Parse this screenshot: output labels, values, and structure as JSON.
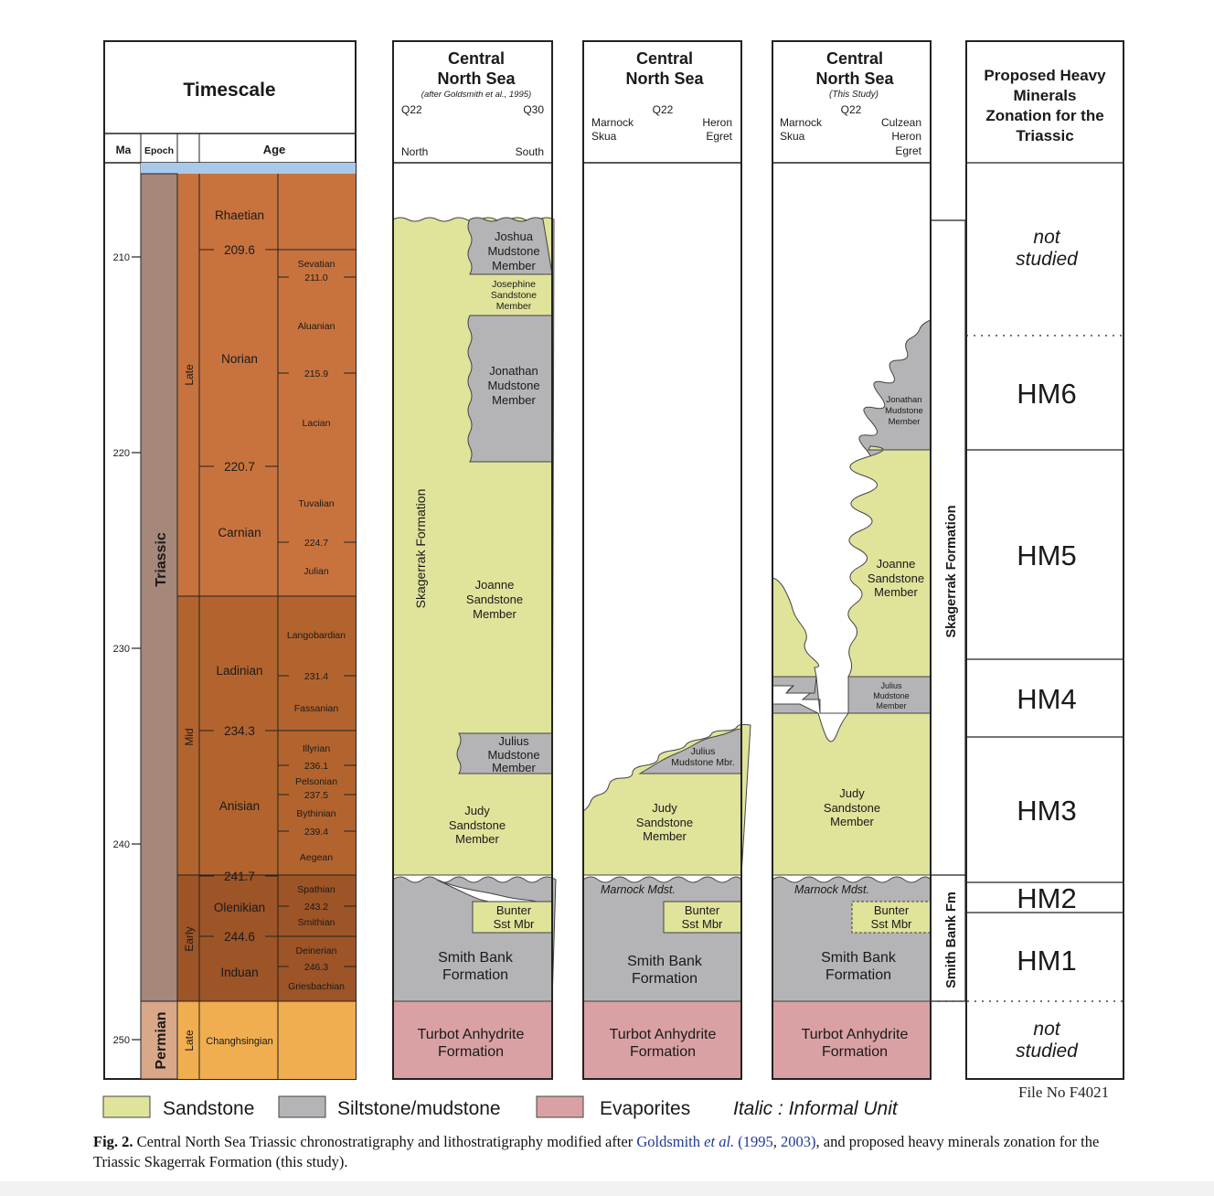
{
  "colors": {
    "sandstone": "#e0e39a",
    "mudstone": "#b4b4b6",
    "evaporite": "#d9a1a3",
    "late_triassic": "#c8733e",
    "mid_triassic": "#b3642e",
    "early_triassic": "#9d5427",
    "permian_age": "#f0ae50",
    "triassic_epoch": "#a5887a",
    "permian_epoch": "#d9a889",
    "sky": "#a9c9ec"
  },
  "timescale": {
    "title": "Timescale",
    "headers": {
      "ma": "Ma",
      "epoch": "Epoch",
      "age": "Age"
    },
    "ma_ticks": [
      "210",
      "220",
      "230",
      "240",
      "250"
    ],
    "periods": {
      "triassic": "Triassic",
      "permian": "Permian"
    },
    "epochs": {
      "late": "Late",
      "mid": "Mid",
      "early": "Early",
      "permian_late": "Late"
    },
    "stages": [
      "Rhaetian",
      "Norian",
      "Carnian",
      "Ladinian",
      "Anisian",
      "Olenikian",
      "Induan",
      "Changhsingian"
    ],
    "boundary_ages": [
      "209.6",
      "220.7",
      "234.3",
      "241.7",
      "244.6"
    ],
    "substages": [
      "Sevatian",
      "Aluanian",
      "Lacian",
      "Tuvalian",
      "Julian",
      "Langobardian",
      "Fassanian",
      "Illyrian",
      "Pelsonian",
      "Bythinian",
      "Aegean",
      "Spathian",
      "Smithian",
      "Deinerian",
      "Griesbachian"
    ],
    "substage_ages": [
      "211.0",
      "215.9",
      "224.7",
      "231.4",
      "236.1",
      "237.5",
      "239.4",
      "243.2",
      "246.3"
    ]
  },
  "col1": {
    "title_1": "Central",
    "title_2": "North Sea",
    "subtitle": "(after Goldsmith et al., 1995)",
    "q_left": "Q22",
    "q_right": "Q30",
    "dir_left": "North",
    "dir_right": "South",
    "formation": "Skagerrak Formation",
    "joshua": [
      "Joshua",
      "Mudstone",
      "Member"
    ],
    "josephine": [
      "Josephine",
      "Sandstone",
      "Member"
    ],
    "jonathan": [
      "Jonathan",
      "Mudstone",
      "Member"
    ],
    "joanne": [
      "Joanne",
      "Sandstone",
      "Member"
    ],
    "julius": [
      "Julius",
      "Mudstone",
      "Member"
    ],
    "judy": [
      "Judy",
      "Sandstone",
      "Member"
    ],
    "bunter": [
      "Bunter",
      "Sst Mbr"
    ],
    "smith": [
      "Smith Bank",
      "Formation"
    ],
    "turbot": [
      "Turbot Anhydrite",
      "Formation"
    ]
  },
  "col2": {
    "title_1": "Central",
    "title_2": "North Sea",
    "q": "Q22",
    "left_1": "Marnock",
    "left_2": "Skua",
    "right_1": "Heron",
    "right_2": "Egret",
    "julius": [
      "Julius",
      "Mudstone Mbr."
    ],
    "judy": [
      "Judy",
      "Sandstone",
      "Member"
    ],
    "marnock": "Marnock Mdst.",
    "bunter": [
      "Bunter",
      "Sst Mbr"
    ],
    "smith": [
      "Smith Bank",
      "Formation"
    ],
    "turbot": [
      "Turbot Anhydrite",
      "Formation"
    ]
  },
  "col3": {
    "title_1": "Central",
    "title_2": "North Sea",
    "subtitle": "(This Study)",
    "q": "Q22",
    "left_1": "Marnock",
    "left_2": "Skua",
    "right_1": "Culzean",
    "right_2": "Heron",
    "right_3": "Egret",
    "jonathan": [
      "Jonathan",
      "Mudstone",
      "Member"
    ],
    "joanne": [
      "Joanne",
      "Sandstone",
      "Member"
    ],
    "julius": [
      "Julius",
      "Mudstone",
      "Member"
    ],
    "judy": [
      "Judy",
      "Sandstone",
      "Member"
    ],
    "marnock": "Marnock Mdst.",
    "bunter": [
      "Bunter",
      "Sst Mbr"
    ],
    "smith": [
      "Smith Bank",
      "Formation"
    ],
    "turbot": [
      "Turbot Anhydrite",
      "Formation"
    ]
  },
  "formations": {
    "skagerrak": "Skagerrak Formation",
    "smith_bank": "Smith Bank Fm"
  },
  "zonation": {
    "title": [
      "Proposed Heavy",
      "Minerals",
      "Zonation for the",
      "Triassic"
    ],
    "not_studied_top": [
      "not",
      "studied"
    ],
    "zones": [
      "HM6",
      "HM5",
      "HM4",
      "HM3",
      "HM2",
      "HM1"
    ],
    "not_studied_bottom": [
      "not",
      "studied"
    ]
  },
  "legend": {
    "sandstone": "Sandstone",
    "siltstone": "Siltstone/mudstone",
    "evaporites": "Evaporites",
    "italic_note": "Italic : Informal Unit"
  },
  "file_no": "File No F4021",
  "caption": {
    "label": "Fig. 2.",
    "text1": " Central North Sea Triassic chronostratigraphy and lithostratigraphy modified after ",
    "ref_author": "Goldsmith ",
    "ref_etal": "et al.",
    "ref_open": " (",
    "ref_y1": "1995",
    "ref_sep": ", ",
    "ref_y2": "2003",
    "ref_close": ")",
    "text2": ", and proposed heavy minerals zonation for the Triassic Skagerrak Formation (this study)."
  }
}
